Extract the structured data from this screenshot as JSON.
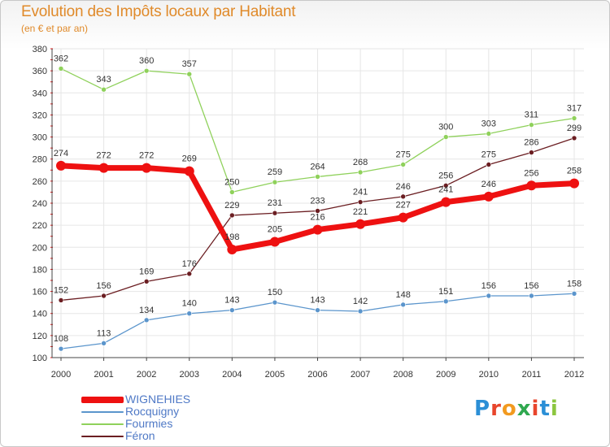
{
  "header": {
    "title": "Evolution des Impôts locaux par Habitant",
    "subtitle": "(en € et par an)"
  },
  "logo": {
    "text": "Proxiti",
    "letters": [
      {
        "ch": "P",
        "color": "#2b8fd6"
      },
      {
        "ch": "r",
        "color": "#e8452c"
      },
      {
        "ch": "o",
        "color": "#f29a1f"
      },
      {
        "ch": "x",
        "color": "#2fa84f"
      },
      {
        "ch": "i",
        "color": "#e8452c"
      },
      {
        "ch": "t",
        "color": "#2b8fd6"
      },
      {
        "ch": "i",
        "color": "#8cc63f"
      }
    ]
  },
  "chart_data": {
    "type": "line",
    "title": "Evolution des Impôts locaux par Habitant",
    "subtitle": "(en € et par an)",
    "xlabel": "",
    "ylabel": "",
    "x": [
      "2000",
      "2001",
      "2002",
      "2003",
      "2004",
      "2005",
      "2006",
      "2007",
      "2008",
      "2009",
      "2010",
      "2011",
      "2012"
    ],
    "ylim": [
      100,
      380
    ],
    "yticks": [
      100,
      120,
      140,
      160,
      180,
      200,
      220,
      240,
      260,
      280,
      300,
      320,
      340,
      360,
      380
    ],
    "grid": true,
    "legend_position": "bottom-left",
    "series": [
      {
        "name": "WIGNEHIES",
        "color": "#ee1111",
        "values": [
          274,
          272,
          272,
          269,
          198,
          205,
          216,
          221,
          227,
          241,
          246,
          256,
          258
        ]
      },
      {
        "name": "Rocquigny",
        "color": "#5b95cc",
        "values": [
          108,
          113,
          134,
          140,
          143,
          150,
          143,
          142,
          148,
          151,
          156,
          156,
          158
        ]
      },
      {
        "name": "Fourmies",
        "color": "#8fd15b",
        "values": [
          362,
          343,
          360,
          357,
          250,
          259,
          264,
          268,
          275,
          300,
          303,
          311,
          317
        ]
      },
      {
        "name": "Féron",
        "color": "#6b1e22",
        "values": [
          152,
          156,
          169,
          176,
          229,
          231,
          233,
          241,
          246,
          256,
          275,
          286,
          299
        ]
      }
    ]
  }
}
